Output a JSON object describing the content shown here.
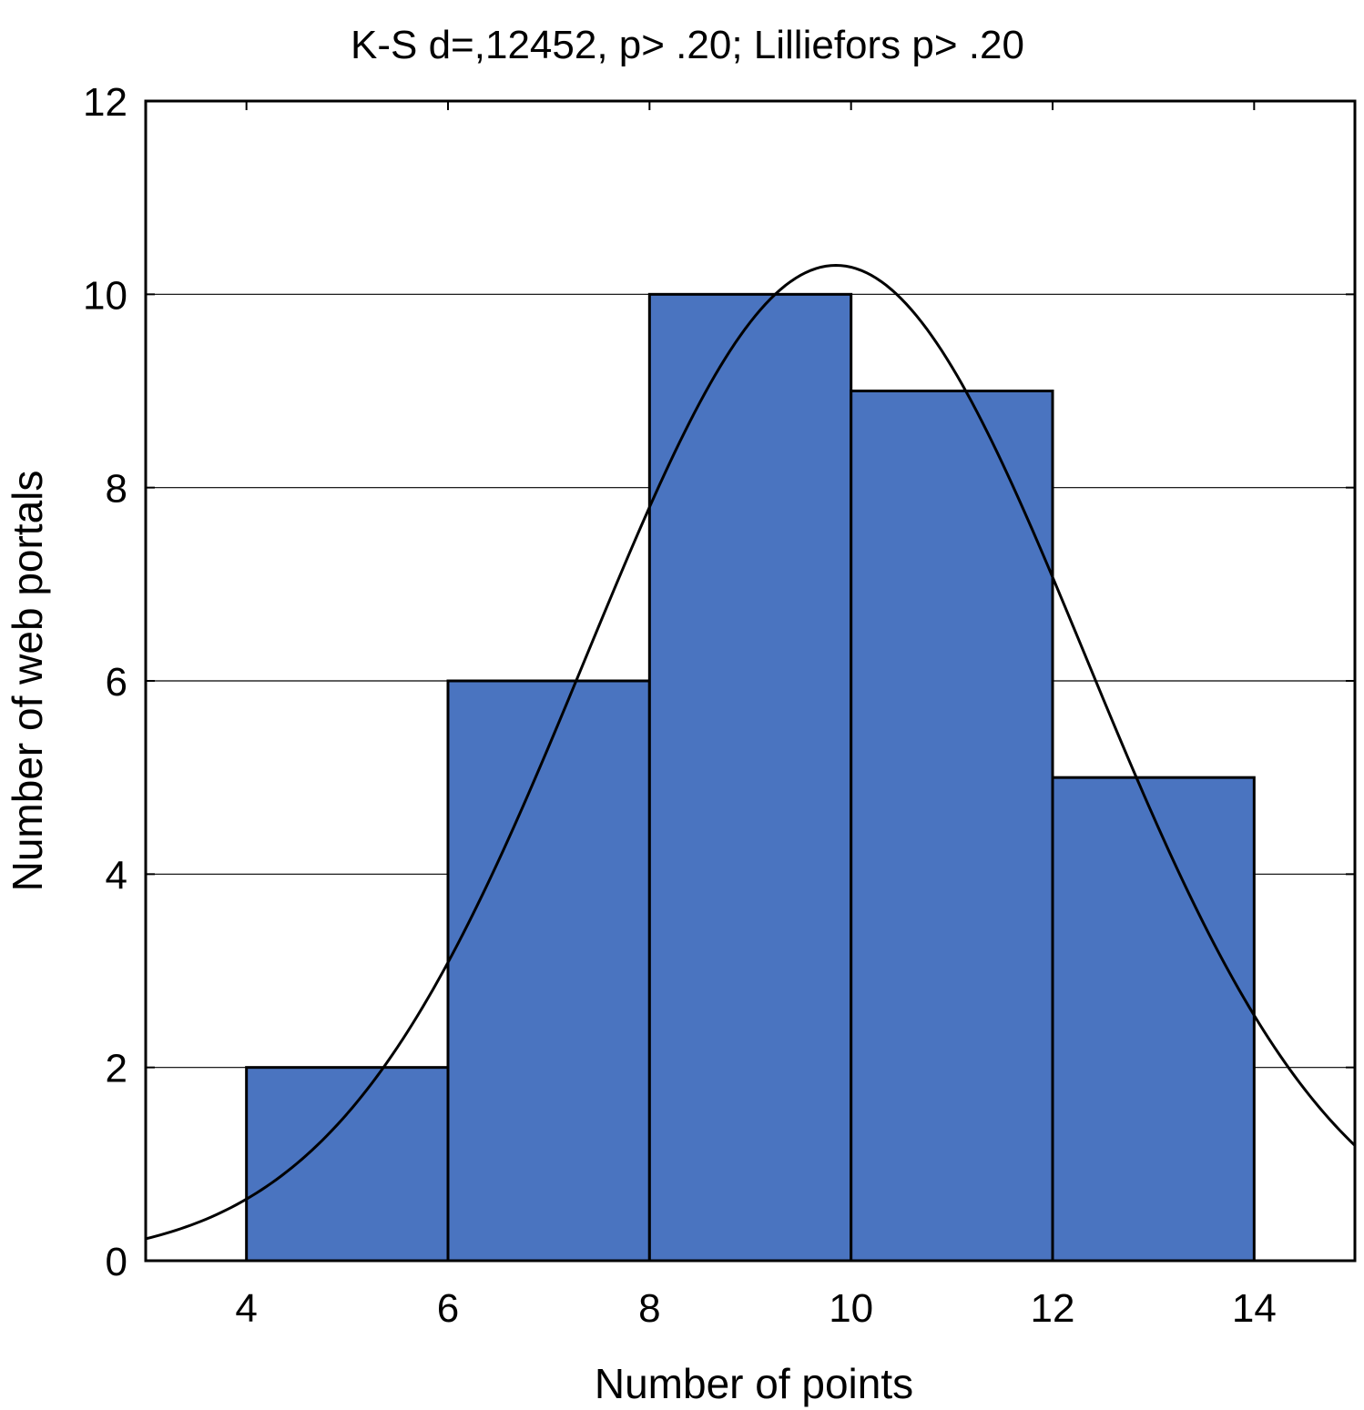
{
  "chart_data": {
    "type": "bar",
    "title": "K-S d=,12452, p> .20; Lilliefors p> .20",
    "xlabel": "Number of points",
    "ylabel": "Number of web portals",
    "xlim": [
      3,
      15
    ],
    "ylim": [
      0,
      12
    ],
    "x_ticks": [
      {
        "value": 4,
        "label": "4"
      },
      {
        "value": 6,
        "label": "6"
      },
      {
        "value": 8,
        "label": "8"
      },
      {
        "value": 10,
        "label": "10"
      },
      {
        "value": 12,
        "label": "12"
      },
      {
        "value": 14,
        "label": "14"
      }
    ],
    "y_ticks": [
      {
        "value": 0,
        "label": "0"
      },
      {
        "value": 2,
        "label": "2"
      },
      {
        "value": 4,
        "label": "4"
      },
      {
        "value": 6,
        "label": "6"
      },
      {
        "value": 8,
        "label": "8"
      },
      {
        "value": 10,
        "label": "10"
      },
      {
        "value": 12,
        "label": "12"
      }
    ],
    "bins": [
      {
        "start": 4,
        "end": 6,
        "count": 2
      },
      {
        "start": 6,
        "end": 8,
        "count": 6
      },
      {
        "start": 8,
        "end": 10,
        "count": 10
      },
      {
        "start": 10,
        "end": 12,
        "count": 9
      },
      {
        "start": 12,
        "end": 14,
        "count": 5
      }
    ],
    "normal_fit": {
      "mean": 9.85,
      "sd": 2.48,
      "peak": 10.3
    },
    "grid": "horizontal",
    "bar_color": "#4a74c0"
  }
}
